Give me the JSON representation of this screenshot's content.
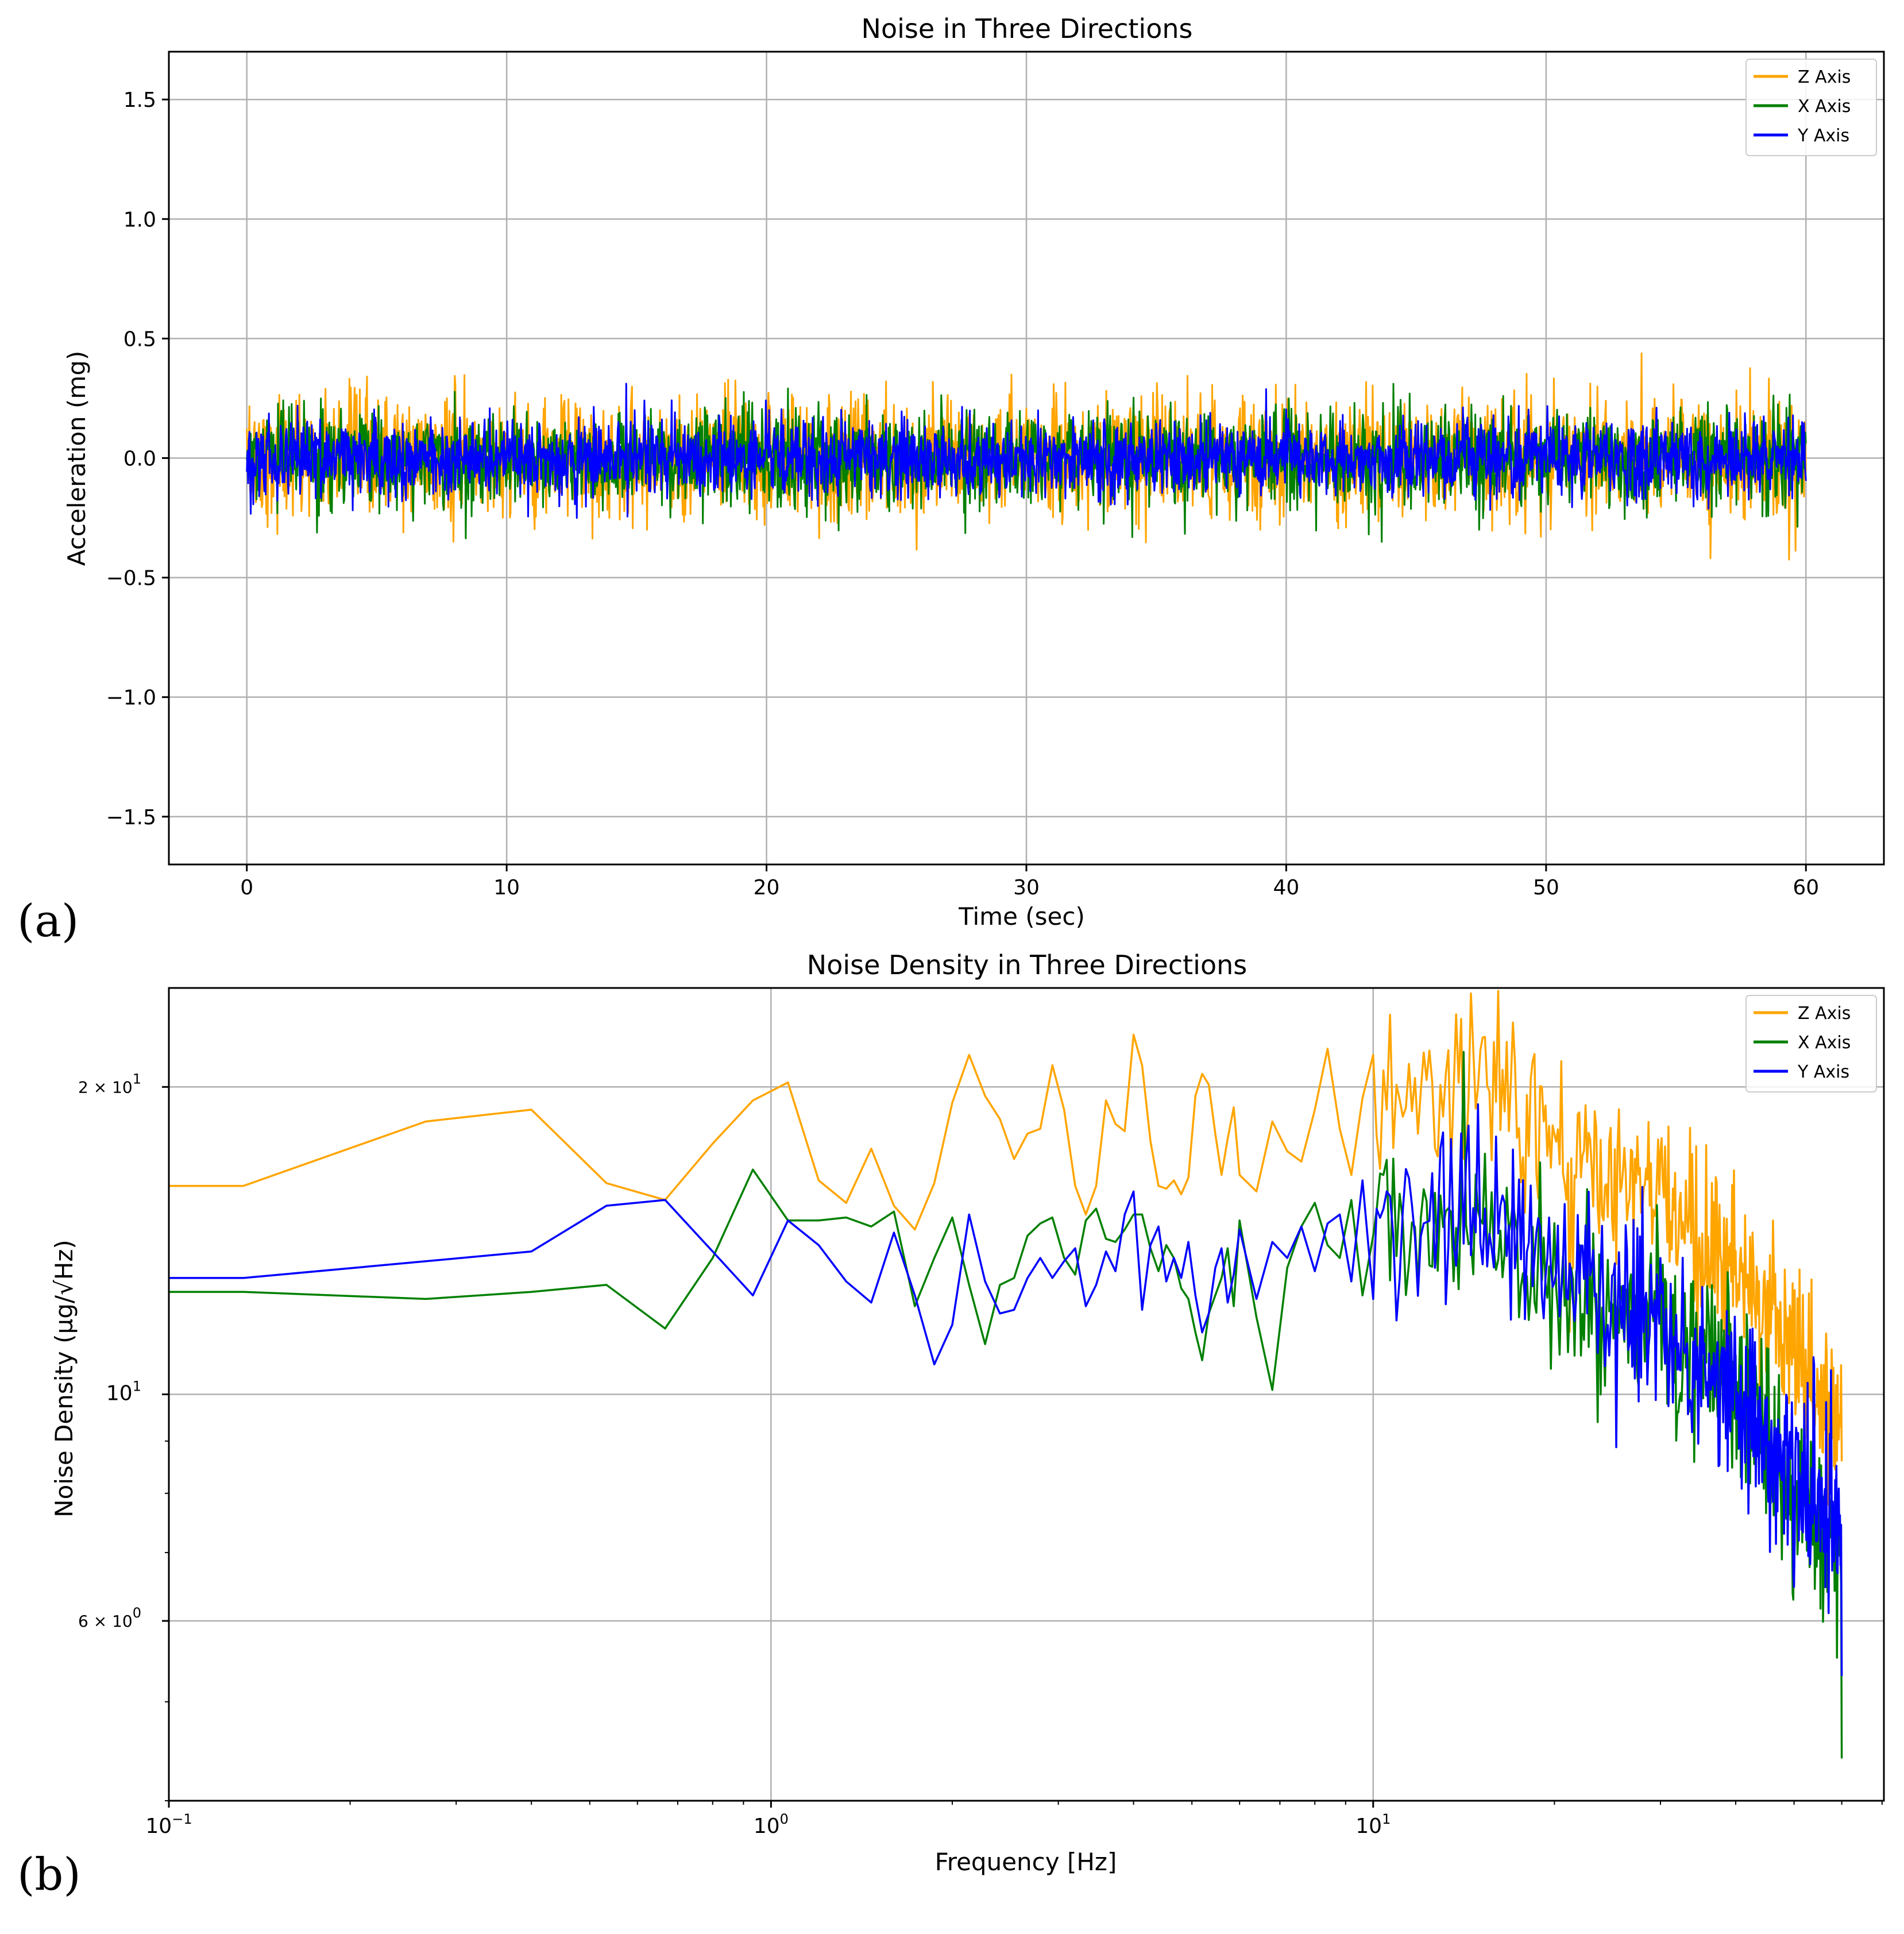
{
  "figure_labels": {
    "a": "(a)",
    "b": "(b)"
  },
  "colors": {
    "z": "#FFA500",
    "x": "#008000",
    "y": "#0000FF"
  },
  "chart_data": [
    {
      "type": "line",
      "title": "Noise in Three Directions",
      "xlabel": "Time (sec)",
      "ylabel": "Acceleration (mg)",
      "xlim": [
        -3,
        63
      ],
      "ylim": [
        -1.7,
        1.7
      ],
      "xticks": [
        0,
        10,
        20,
        30,
        40,
        50,
        60
      ],
      "xticklabels": [
        "0",
        "10",
        "20",
        "30",
        "40",
        "50",
        "60"
      ],
      "yticks": [
        -1.5,
        -1.0,
        -0.5,
        0.0,
        0.5,
        1.0,
        1.5
      ],
      "yticklabels": [
        "−1.5",
        "−1.0",
        "−0.5",
        "0.0",
        "0.5",
        "1.0",
        "1.5"
      ],
      "grid": true,
      "legend": {
        "placement": "top-right",
        "entries": [
          "Z Axis",
          "X Axis",
          "Y Axis"
        ]
      },
      "series": [
        {
          "name": "Z Axis",
          "color": "#FFA500",
          "t_range": [
            0,
            60
          ],
          "mean": 0.0,
          "typical_amplitude": 0.28,
          "max": 0.46,
          "min": -0.44
        },
        {
          "name": "X Axis",
          "color": "#008000",
          "t_range": [
            0,
            60
          ],
          "mean": 0.0,
          "typical_amplitude": 0.22,
          "max": 0.32,
          "min": -0.36
        },
        {
          "name": "Y Axis",
          "color": "#0000FF",
          "t_range": [
            0,
            60
          ],
          "mean": 0.0,
          "typical_amplitude": 0.18,
          "max": 0.34,
          "min": -0.26
        }
      ]
    },
    {
      "type": "line",
      "title": "Noise Density in Three Directions",
      "xlabel": "Frequency [Hz]",
      "ylabel": "Noise Density (µg/√Hz)",
      "xscale": "log",
      "yscale": "log",
      "xlim": [
        0.1,
        60
      ],
      "ylim": [
        4.0,
        25.0
      ],
      "xticks": [
        0.1,
        1,
        10
      ],
      "xticklabels": [
        {
          "base": "10",
          "exp": "−1"
        },
        {
          "base": "10",
          "exp": "0"
        },
        {
          "base": "10",
          "exp": "1"
        }
      ],
      "yticks": [
        6,
        10,
        20
      ],
      "yticklabels": [
        {
          "mant": "6 × 10",
          "exp": "0"
        },
        {
          "base": "10",
          "exp": "1"
        },
        {
          "mant": "2 × 10",
          "exp": "1"
        }
      ],
      "grid": true,
      "legend": {
        "placement": "top-right",
        "entries": [
          "Z Axis",
          "X Axis",
          "Y Axis"
        ]
      },
      "series": [
        {
          "name": "Z Axis",
          "color": "#FFA500",
          "x": [
            0.1,
            0.133,
            0.267,
            0.4,
            0.533,
            0.667,
            0.8,
            0.933,
            1.067,
            1.2,
            1.333,
            1.467,
            1.6,
            1.733,
            1.867,
            2.0,
            2.133,
            2.267,
            2.4,
            2.533,
            2.667,
            2.8,
            2.933,
            3.067,
            3.2,
            3.333,
            3.467,
            3.6,
            3.733,
            3.867,
            4.0,
            4.133,
            4.267,
            4.4,
            4.533,
            4.667,
            4.8,
            4.933,
            5.067,
            5.2,
            5.333,
            5.467,
            5.6,
            5.733,
            5.867,
            6.0,
            6.4,
            6.8,
            7.2,
            7.6,
            8.0,
            8.4,
            8.8,
            9.2,
            9.6,
            10.0
          ],
          "y": [
            16.0,
            16.0,
            18.5,
            19.0,
            16.1,
            15.5,
            17.6,
            19.4,
            20.2,
            16.2,
            15.4,
            17.4,
            15.3,
            14.5,
            16.1,
            19.3,
            21.5,
            19.6,
            18.6,
            17.0,
            18.0,
            18.2,
            21.0,
            19.0,
            16.0,
            15.0,
            16.0,
            19.4,
            18.4,
            18.1,
            22.5,
            21.0,
            17.7,
            16.0,
            15.9,
            16.2,
            15.7,
            16.3,
            19.6,
            20.6,
            20.1,
            18.0,
            16.4,
            17.8,
            19.1,
            16.4,
            15.8,
            18.5,
            17.3,
            16.9,
            19.0,
            21.8,
            18.2,
            16.4,
            19.5,
            21.5
          ],
          "trend": {
            "x": [
              10,
              15,
              20,
              30,
              40,
              50,
              60
            ],
            "y": [
              19.8,
              20.3,
              17.6,
              15.5,
              13.0,
              11.0,
              9.2
            ]
          }
        },
        {
          "name": "X Axis",
          "color": "#008000",
          "x": [
            0.1,
            0.133,
            0.267,
            0.4,
            0.533,
            0.667,
            0.8,
            0.933,
            1.067,
            1.2,
            1.333,
            1.467,
            1.6,
            1.733,
            1.867,
            2.0,
            2.133,
            2.267,
            2.4,
            2.533,
            2.667,
            2.8,
            2.933,
            3.067,
            3.2,
            3.333,
            3.467,
            3.6,
            3.733,
            3.867,
            4.0,
            4.133,
            4.267,
            4.4,
            4.533,
            4.667,
            4.8,
            4.933,
            5.067,
            5.2,
            5.333,
            5.467,
            5.6,
            5.733,
            5.867,
            6.0,
            6.4,
            6.8,
            7.2,
            7.6,
            8.0,
            8.4,
            8.8,
            9.2,
            9.6,
            10.0
          ],
          "y": [
            12.6,
            12.6,
            12.4,
            12.6,
            12.8,
            11.6,
            13.6,
            16.6,
            14.8,
            14.8,
            14.9,
            14.6,
            15.1,
            12.2,
            13.6,
            14.9,
            12.8,
            11.2,
            12.8,
            13.0,
            14.3,
            14.7,
            14.9,
            13.6,
            13.1,
            14.8,
            15.2,
            14.2,
            14.1,
            14.5,
            15.0,
            15.0,
            13.9,
            13.2,
            14.0,
            13.6,
            12.7,
            12.4,
            11.5,
            10.8,
            12.0,
            12.5,
            13.0,
            13.9,
            12.2,
            14.8,
            11.9,
            10.1,
            13.3,
            14.6,
            15.4,
            14.0,
            13.6,
            15.5,
            12.5,
            14.3
          ],
          "trend": {
            "x": [
              10,
              15,
              20,
              30,
              40,
              50,
              60
            ],
            "y": [
              14.6,
              14.6,
              12.9,
              11.9,
              10.2,
              8.0,
              6.9
            ]
          }
        },
        {
          "name": "Y Axis",
          "color": "#0000FF",
          "x": [
            0.1,
            0.133,
            0.267,
            0.4,
            0.533,
            0.667,
            0.8,
            0.933,
            1.067,
            1.2,
            1.333,
            1.467,
            1.6,
            1.733,
            1.867,
            2.0,
            2.133,
            2.267,
            2.4,
            2.533,
            2.667,
            2.8,
            2.933,
            3.067,
            3.2,
            3.333,
            3.467,
            3.6,
            3.733,
            3.867,
            4.0,
            4.133,
            4.267,
            4.4,
            4.533,
            4.667,
            4.8,
            4.933,
            5.067,
            5.2,
            5.333,
            5.467,
            5.6,
            5.733,
            5.867,
            6.0,
            6.4,
            6.8,
            7.2,
            7.6,
            8.0,
            8.4,
            8.8,
            9.2,
            9.6,
            10.0
          ],
          "y": [
            13.0,
            13.0,
            13.5,
            13.8,
            15.3,
            15.5,
            13.8,
            12.5,
            14.8,
            14.0,
            12.9,
            12.3,
            14.4,
            12.5,
            10.7,
            11.7,
            15.0,
            12.9,
            12.0,
            12.1,
            13.0,
            13.6,
            13.0,
            13.5,
            13.9,
            12.2,
            12.8,
            13.8,
            13.2,
            15.0,
            15.8,
            12.1,
            14.0,
            14.6,
            12.9,
            13.6,
            13.0,
            14.1,
            12.5,
            11.5,
            12.0,
            13.3,
            13.9,
            12.3,
            13.1,
            14.5,
            12.4,
            14.1,
            13.6,
            14.6,
            13.2,
            14.7,
            15.0,
            12.9,
            16.2,
            12.4
          ],
          "trend": {
            "x": [
              10,
              15,
              20,
              30,
              40,
              50,
              60
            ],
            "y": [
              14.3,
              15.2,
              13.0,
              11.6,
              10.0,
              8.2,
              7.5
            ]
          }
        }
      ]
    }
  ]
}
